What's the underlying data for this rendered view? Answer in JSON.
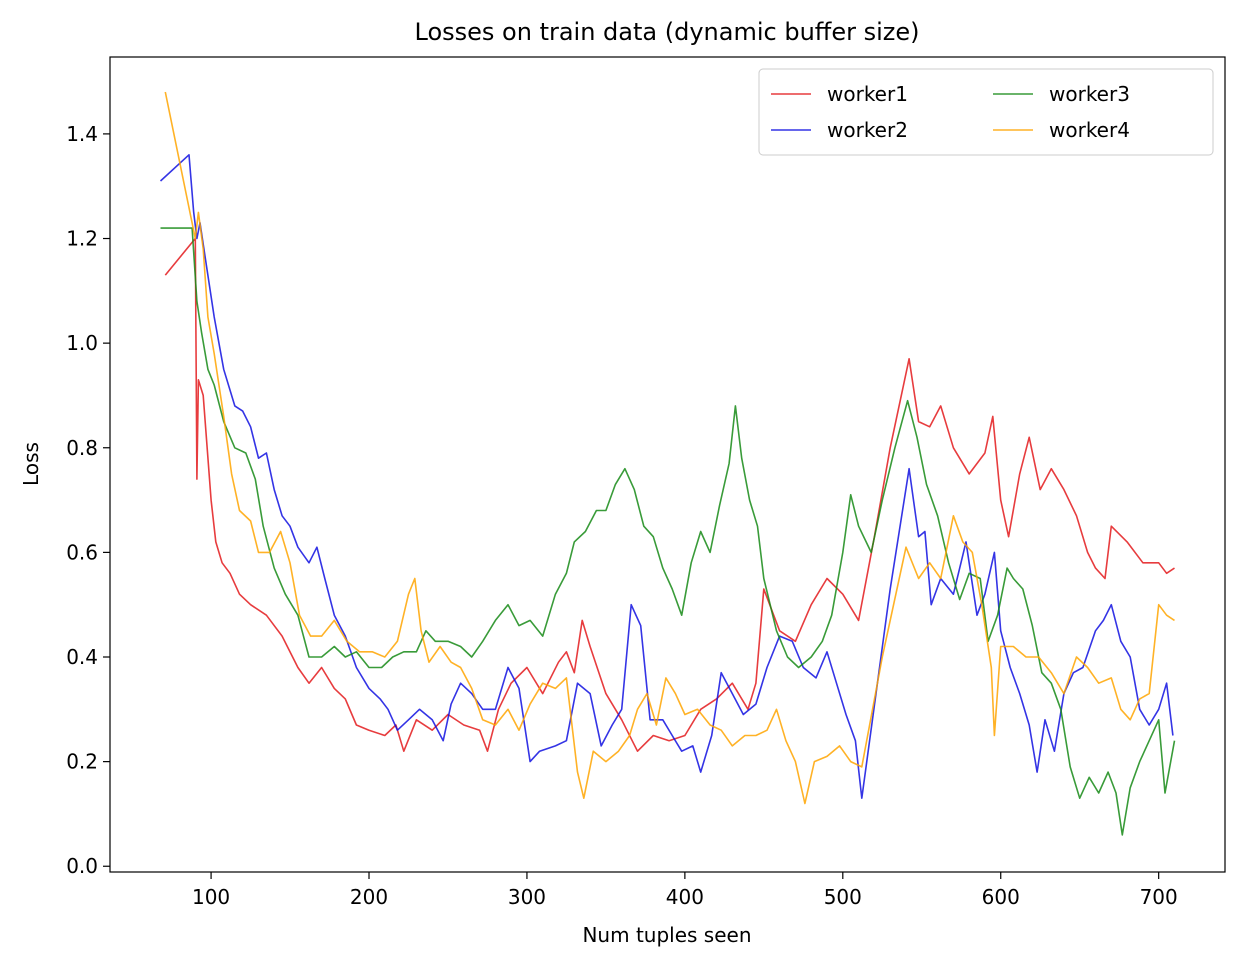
{
  "chart_data": {
    "type": "line",
    "title": "Losses on train data (dynamic buffer size)",
    "x_label": "Num tuples seen",
    "y_label": "Loss",
    "xlim": [
      36,
      742
    ],
    "ylim": [
      -0.011,
      1.547
    ],
    "xticks": [
      100,
      200,
      300,
      400,
      500,
      600,
      700
    ],
    "yticks": [
      {
        "value": 0,
        "label": "0.0"
      },
      0.2,
      0.4,
      0.6,
      0.8,
      {
        "value": 1,
        "label": "1.0"
      },
      1.2,
      1.4
    ],
    "grid": false,
    "legend": "upper right",
    "legend_columns": 2,
    "series": [
      {
        "name": "worker1",
        "color": "#e31a1c",
        "x": [
          71,
          90,
          91,
          92,
          95,
          100,
          103,
          107,
          112,
          118,
          125,
          135,
          145,
          155,
          162,
          170,
          178,
          185,
          192,
          200,
          210,
          217,
          222,
          230,
          240,
          250,
          260,
          270,
          275,
          282,
          290,
          300,
          310,
          320,
          325,
          330,
          335,
          340,
          350,
          360,
          370,
          380,
          390,
          400,
          410,
          420,
          430,
          440,
          445,
          450,
          460,
          470,
          480,
          490,
          500,
          510,
          520,
          530,
          542,
          548,
          555,
          562,
          570,
          580,
          590,
          595,
          600,
          605,
          612,
          618,
          625,
          632,
          640,
          648,
          655,
          660,
          666,
          670,
          680,
          690,
          700,
          705,
          710
        ],
        "values": [
          1.13,
          1.2,
          0.74,
          0.93,
          0.9,
          0.7,
          0.62,
          0.58,
          0.56,
          0.52,
          0.5,
          0.48,
          0.44,
          0.38,
          0.35,
          0.38,
          0.34,
          0.32,
          0.27,
          0.26,
          0.25,
          0.27,
          0.22,
          0.28,
          0.26,
          0.29,
          0.27,
          0.26,
          0.22,
          0.3,
          0.35,
          0.38,
          0.33,
          0.39,
          0.41,
          0.37,
          0.47,
          0.42,
          0.33,
          0.28,
          0.22,
          0.25,
          0.24,
          0.25,
          0.3,
          0.32,
          0.35,
          0.3,
          0.35,
          0.53,
          0.45,
          0.43,
          0.5,
          0.55,
          0.52,
          0.47,
          0.63,
          0.8,
          0.97,
          0.85,
          0.84,
          0.88,
          0.8,
          0.75,
          0.79,
          0.86,
          0.7,
          0.63,
          0.75,
          0.82,
          0.72,
          0.76,
          0.72,
          0.67,
          0.6,
          0.57,
          0.55,
          0.65,
          0.62,
          0.58,
          0.58,
          0.56,
          0.57
        ]
      },
      {
        "name": "worker2",
        "color": "#1010e0",
        "x": [
          68,
          86,
          89,
          91,
          93,
          97,
          102,
          108,
          115,
          120,
          125,
          130,
          135,
          140,
          145,
          150,
          155,
          162,
          167,
          172,
          178,
          185,
          192,
          200,
          207,
          212,
          218,
          225,
          232,
          240,
          247,
          252,
          258,
          265,
          272,
          280,
          288,
          295,
          302,
          308,
          318,
          325,
          332,
          340,
          347,
          354,
          360,
          366,
          372,
          378,
          386,
          392,
          398,
          405,
          410,
          417,
          423,
          430,
          437,
          445,
          452,
          460,
          468,
          475,
          483,
          490,
          496,
          502,
          508,
          512,
          530,
          542,
          548,
          552,
          556,
          562,
          570,
          578,
          585,
          590,
          596,
          600,
          606,
          612,
          618,
          623,
          628,
          634,
          640,
          646,
          652,
          660,
          665,
          670,
          676,
          682,
          688,
          694,
          700,
          705,
          709
        ],
        "values": [
          1.31,
          1.36,
          1.25,
          1.2,
          1.23,
          1.15,
          1.05,
          0.95,
          0.88,
          0.87,
          0.84,
          0.78,
          0.79,
          0.72,
          0.67,
          0.65,
          0.61,
          0.58,
          0.61,
          0.55,
          0.48,
          0.44,
          0.38,
          0.34,
          0.32,
          0.3,
          0.26,
          0.28,
          0.3,
          0.28,
          0.24,
          0.31,
          0.35,
          0.33,
          0.3,
          0.3,
          0.38,
          0.34,
          0.2,
          0.22,
          0.23,
          0.24,
          0.35,
          0.33,
          0.23,
          0.27,
          0.3,
          0.5,
          0.46,
          0.28,
          0.28,
          0.25,
          0.22,
          0.23,
          0.18,
          0.25,
          0.37,
          0.33,
          0.29,
          0.31,
          0.38,
          0.44,
          0.43,
          0.38,
          0.36,
          0.41,
          0.35,
          0.29,
          0.24,
          0.13,
          0.53,
          0.76,
          0.63,
          0.64,
          0.5,
          0.55,
          0.52,
          0.62,
          0.48,
          0.52,
          0.6,
          0.45,
          0.38,
          0.33,
          0.27,
          0.18,
          0.28,
          0.22,
          0.33,
          0.37,
          0.38,
          0.45,
          0.47,
          0.5,
          0.43,
          0.4,
          0.3,
          0.27,
          0.3,
          0.35,
          0.25
        ]
      },
      {
        "name": "worker3",
        "color": "#168a16",
        "x": [
          68,
          88,
          91,
          94,
          98,
          102,
          108,
          115,
          122,
          128,
          133,
          140,
          147,
          155,
          162,
          170,
          178,
          185,
          192,
          200,
          208,
          215,
          222,
          230,
          236,
          242,
          250,
          258,
          265,
          272,
          280,
          288,
          295,
          302,
          310,
          318,
          325,
          330,
          337,
          344,
          350,
          356,
          362,
          368,
          374,
          380,
          386,
          392,
          398,
          404,
          410,
          416,
          422,
          428,
          432,
          436,
          441,
          446,
          450,
          458,
          465,
          472,
          480,
          487,
          493,
          500,
          505,
          510,
          518,
          525,
          533,
          541,
          547,
          553,
          560,
          567,
          574,
          580,
          587,
          592,
          598,
          604,
          608,
          614,
          620,
          626,
          632,
          638,
          644,
          650,
          656,
          662,
          668,
          673,
          677,
          682,
          688,
          694,
          700,
          704,
          710
        ],
        "values": [
          1.22,
          1.22,
          1.08,
          1.02,
          0.95,
          0.92,
          0.85,
          0.8,
          0.79,
          0.74,
          0.65,
          0.57,
          0.52,
          0.48,
          0.4,
          0.4,
          0.42,
          0.4,
          0.41,
          0.38,
          0.38,
          0.4,
          0.41,
          0.41,
          0.45,
          0.43,
          0.43,
          0.42,
          0.4,
          0.43,
          0.47,
          0.5,
          0.46,
          0.47,
          0.44,
          0.52,
          0.56,
          0.62,
          0.64,
          0.68,
          0.68,
          0.73,
          0.76,
          0.72,
          0.65,
          0.63,
          0.57,
          0.53,
          0.48,
          0.58,
          0.64,
          0.6,
          0.69,
          0.77,
          0.88,
          0.78,
          0.7,
          0.65,
          0.55,
          0.45,
          0.4,
          0.38,
          0.4,
          0.43,
          0.48,
          0.6,
          0.71,
          0.65,
          0.6,
          0.7,
          0.8,
          0.89,
          0.82,
          0.73,
          0.67,
          0.58,
          0.51,
          0.56,
          0.55,
          0.43,
          0.48,
          0.57,
          0.55,
          0.53,
          0.46,
          0.37,
          0.35,
          0.3,
          0.19,
          0.13,
          0.17,
          0.14,
          0.18,
          0.14,
          0.06,
          0.15,
          0.2,
          0.24,
          0.28,
          0.14,
          0.24
        ]
      },
      {
        "name": "worker4",
        "color": "#ffa500",
        "x": [
          71,
          90,
          92,
          95,
          98,
          102,
          108,
          113,
          118,
          125,
          130,
          137,
          144,
          150,
          156,
          163,
          170,
          178,
          186,
          194,
          202,
          210,
          218,
          225,
          229,
          233,
          238,
          245,
          252,
          258,
          265,
          272,
          280,
          288,
          295,
          302,
          310,
          318,
          325,
          332,
          336,
          342,
          350,
          358,
          365,
          370,
          376,
          382,
          388,
          394,
          400,
          408,
          416,
          423,
          430,
          438,
          445,
          452,
          458,
          464,
          470,
          476,
          482,
          490,
          498,
          505,
          512,
          525,
          540,
          548,
          555,
          562,
          570,
          576,
          582,
          588,
          594,
          596,
          600,
          608,
          616,
          624,
          632,
          640,
          648,
          655,
          662,
          670,
          676,
          682,
          688,
          694,
          700,
          705,
          710
        ],
        "values": [
          1.48,
          1.2,
          1.25,
          1.18,
          1.05,
          0.98,
          0.86,
          0.75,
          0.68,
          0.66,
          0.6,
          0.6,
          0.64,
          0.58,
          0.48,
          0.44,
          0.44,
          0.47,
          0.43,
          0.41,
          0.41,
          0.4,
          0.43,
          0.52,
          0.55,
          0.45,
          0.39,
          0.42,
          0.39,
          0.38,
          0.34,
          0.28,
          0.27,
          0.3,
          0.26,
          0.31,
          0.35,
          0.34,
          0.36,
          0.18,
          0.13,
          0.22,
          0.2,
          0.22,
          0.25,
          0.3,
          0.33,
          0.27,
          0.36,
          0.33,
          0.29,
          0.3,
          0.27,
          0.26,
          0.23,
          0.25,
          0.25,
          0.26,
          0.3,
          0.24,
          0.2,
          0.12,
          0.2,
          0.21,
          0.23,
          0.2,
          0.19,
          0.4,
          0.61,
          0.55,
          0.58,
          0.55,
          0.67,
          0.62,
          0.6,
          0.5,
          0.38,
          0.25,
          0.42,
          0.42,
          0.4,
          0.4,
          0.37,
          0.33,
          0.4,
          0.38,
          0.35,
          0.36,
          0.3,
          0.28,
          0.32,
          0.33,
          0.5,
          0.48,
          0.47
        ]
      }
    ]
  }
}
